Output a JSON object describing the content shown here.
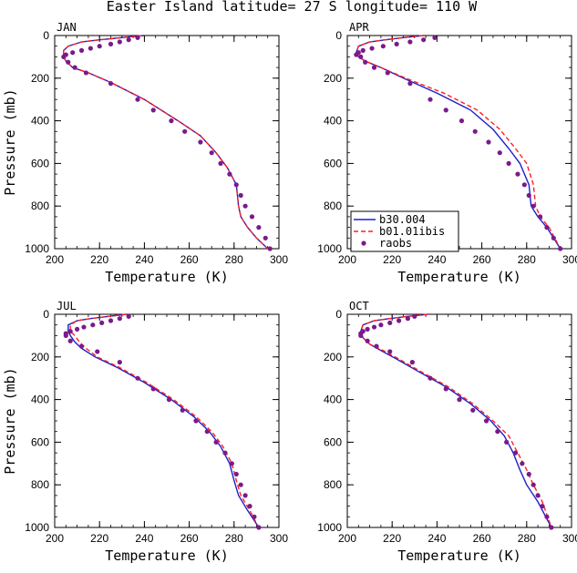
{
  "title": "Easter Island  latitude= 27 S longitude= 110 W",
  "legend": {
    "entries": [
      "b30.004",
      "b01.01ibis",
      "raobs"
    ]
  },
  "colors": {
    "b30.004": "#1f1fcc",
    "b01.01ibis": "#ff2020",
    "raobs": "#7a1a8c"
  },
  "chart_data": [
    {
      "type": "line",
      "panel": "JAN",
      "xlabel": "Temperature (K)",
      "ylabel": "Pressure (mb)",
      "xlim": [
        200,
        300
      ],
      "ylim": [
        1000,
        0
      ],
      "xticks": [
        200,
        220,
        240,
        260,
        280,
        300
      ],
      "yticks": [
        0,
        200,
        400,
        600,
        800,
        1000
      ],
      "series": [
        {
          "name": "b30.004",
          "style": "solid",
          "x": [
            240,
            230,
            220,
            212,
            206,
            204,
            204,
            205,
            208,
            215,
            225,
            240,
            255,
            265,
            272,
            277,
            281,
            282,
            283,
            286,
            290,
            295
          ],
          "y": [
            0,
            10,
            20,
            30,
            50,
            70,
            100,
            120,
            150,
            175,
            220,
            300,
            400,
            470,
            550,
            620,
            700,
            800,
            850,
            900,
            950,
            1000
          ]
        },
        {
          "name": "b01.01ibis",
          "style": "dashed",
          "x": [
            239,
            230,
            220,
            212,
            206,
            204,
            204,
            205,
            208,
            215,
            225,
            240,
            255,
            265,
            272,
            277,
            281,
            282,
            283,
            286,
            290,
            295
          ],
          "y": [
            0,
            10,
            20,
            30,
            50,
            70,
            100,
            120,
            150,
            175,
            220,
            300,
            400,
            470,
            550,
            620,
            700,
            800,
            850,
            900,
            950,
            1000
          ]
        },
        {
          "name": "raobs",
          "style": "points",
          "x": [
            237,
            233,
            229,
            225,
            220,
            216,
            212,
            208,
            205,
            204,
            206,
            209,
            214,
            225,
            237,
            244,
            252,
            258,
            265,
            270,
            274,
            278,
            281,
            283,
            285,
            288,
            291,
            294,
            296
          ],
          "y": [
            10,
            20,
            30,
            40,
            50,
            60,
            70,
            80,
            90,
            100,
            125,
            150,
            175,
            225,
            300,
            350,
            400,
            450,
            500,
            550,
            600,
            650,
            700,
            750,
            800,
            850,
            900,
            950,
            1000
          ]
        }
      ]
    },
    {
      "type": "line",
      "panel": "APR",
      "xlabel": "Temperature (K)",
      "ylabel": "",
      "xlim": [
        200,
        300
      ],
      "ylim": [
        1000,
        0
      ],
      "xticks": [
        200,
        220,
        240,
        260,
        280,
        300
      ],
      "yticks": [
        0,
        200,
        400,
        600,
        800,
        1000
      ],
      "series": [
        {
          "name": "b30.004",
          "style": "solid",
          "x": [
            234,
            225,
            217,
            210,
            205,
            204,
            205,
            208,
            215,
            225,
            240,
            255,
            265,
            272,
            277,
            281,
            282,
            285,
            289,
            295
          ],
          "y": [
            0,
            10,
            20,
            30,
            50,
            80,
            100,
            120,
            150,
            200,
            270,
            350,
            440,
            530,
            600,
            700,
            800,
            850,
            900,
            1000
          ]
        },
        {
          "name": "b01.01ibis",
          "style": "dashed",
          "x": [
            234,
            225,
            217,
            210,
            205,
            204,
            205,
            208,
            215,
            226,
            243,
            258,
            268,
            275,
            280,
            283,
            284,
            286,
            290,
            295
          ],
          "y": [
            0,
            10,
            20,
            30,
            50,
            80,
            100,
            120,
            150,
            200,
            270,
            350,
            440,
            530,
            600,
            700,
            800,
            850,
            900,
            1000
          ]
        },
        {
          "name": "raobs",
          "style": "points",
          "x": [
            239,
            234,
            228,
            222,
            216,
            211,
            207,
            205,
            204,
            206,
            208,
            212,
            218,
            228,
            237,
            244,
            251,
            257,
            263,
            268,
            272,
            276,
            279,
            281,
            283,
            286,
            289,
            292,
            295
          ],
          "y": [
            10,
            20,
            30,
            40,
            50,
            60,
            70,
            80,
            90,
            100,
            125,
            150,
            175,
            225,
            300,
            350,
            400,
            450,
            500,
            550,
            600,
            650,
            700,
            750,
            800,
            850,
            900,
            950,
            1000
          ]
        }
      ]
    },
    {
      "type": "line",
      "panel": "JUL",
      "xlabel": "Temperature (K)",
      "ylabel": "Pressure (mb)",
      "xlim": [
        200,
        300
      ],
      "ylim": [
        1000,
        0
      ],
      "xticks": [
        200,
        220,
        240,
        260,
        280,
        300
      ],
      "yticks": [
        0,
        200,
        400,
        600,
        800,
        1000
      ],
      "series": [
        {
          "name": "b30.004",
          "style": "solid",
          "x": [
            232,
            224,
            216,
            210,
            206,
            206,
            207,
            209,
            212,
            218,
            228,
            240,
            252,
            262,
            269,
            274,
            278,
            280,
            282,
            286,
            291
          ],
          "y": [
            0,
            10,
            20,
            30,
            50,
            80,
            100,
            130,
            160,
            200,
            250,
            320,
            400,
            480,
            550,
            620,
            700,
            780,
            850,
            920,
            1000
          ]
        },
        {
          "name": "b01.01ibis",
          "style": "dashed",
          "x": [
            232,
            224,
            216,
            210,
            207,
            207,
            209,
            211,
            214,
            219,
            229,
            241,
            253,
            263,
            270,
            275,
            279,
            281,
            283,
            287,
            291
          ],
          "y": [
            0,
            10,
            20,
            30,
            50,
            80,
            100,
            130,
            160,
            200,
            250,
            320,
            400,
            480,
            550,
            620,
            700,
            780,
            850,
            920,
            1000
          ]
        },
        {
          "name": "raobs",
          "style": "points",
          "x": [
            233,
            229,
            225,
            221,
            217,
            213,
            210,
            207,
            205,
            205,
            207,
            212,
            219,
            229,
            237,
            244,
            251,
            257,
            263,
            268,
            272,
            276,
            279,
            281,
            283,
            285,
            287,
            289,
            291
          ],
          "y": [
            10,
            20,
            30,
            40,
            50,
            60,
            70,
            80,
            90,
            100,
            125,
            150,
            175,
            225,
            300,
            350,
            400,
            450,
            500,
            550,
            600,
            650,
            700,
            750,
            800,
            850,
            900,
            950,
            1000
          ]
        }
      ]
    },
    {
      "type": "line",
      "panel": "OCT",
      "xlabel": "Temperature (K)",
      "ylabel": "",
      "xlim": [
        200,
        300
      ],
      "ylim": [
        1000,
        0
      ],
      "xticks": [
        200,
        220,
        240,
        260,
        280,
        300
      ],
      "yticks": [
        0,
        200,
        400,
        600,
        800,
        1000
      ],
      "series": [
        {
          "name": "b30.004",
          "style": "solid",
          "x": [
            236,
            227,
            219,
            212,
            207,
            206,
            207,
            210,
            215,
            222,
            232,
            244,
            255,
            264,
            270,
            274,
            277,
            280,
            285,
            291
          ],
          "y": [
            0,
            10,
            20,
            30,
            50,
            80,
            110,
            140,
            170,
            210,
            270,
            340,
            420,
            500,
            570,
            650,
            730,
            800,
            880,
            1000
          ]
        },
        {
          "name": "b01.01ibis",
          "style": "dashed",
          "x": [
            236,
            227,
            219,
            212,
            207,
            206,
            207,
            210,
            216,
            223,
            233,
            245,
            256,
            265,
            272,
            276,
            280,
            283,
            287,
            291
          ],
          "y": [
            0,
            10,
            20,
            30,
            50,
            80,
            110,
            140,
            170,
            210,
            270,
            340,
            420,
            500,
            570,
            650,
            730,
            800,
            880,
            1000
          ]
        },
        {
          "name": "raobs",
          "style": "points",
          "x": [
            230,
            227,
            223,
            219,
            215,
            212,
            209,
            207,
            206,
            206,
            209,
            213,
            219,
            229,
            237,
            244,
            250,
            256,
            262,
            267,
            271,
            275,
            278,
            281,
            283,
            285,
            287,
            289,
            291
          ],
          "y": [
            10,
            20,
            30,
            40,
            50,
            60,
            70,
            80,
            90,
            100,
            125,
            150,
            175,
            225,
            300,
            350,
            400,
            450,
            500,
            550,
            600,
            650,
            700,
            750,
            800,
            850,
            900,
            950,
            1000
          ]
        }
      ]
    }
  ]
}
